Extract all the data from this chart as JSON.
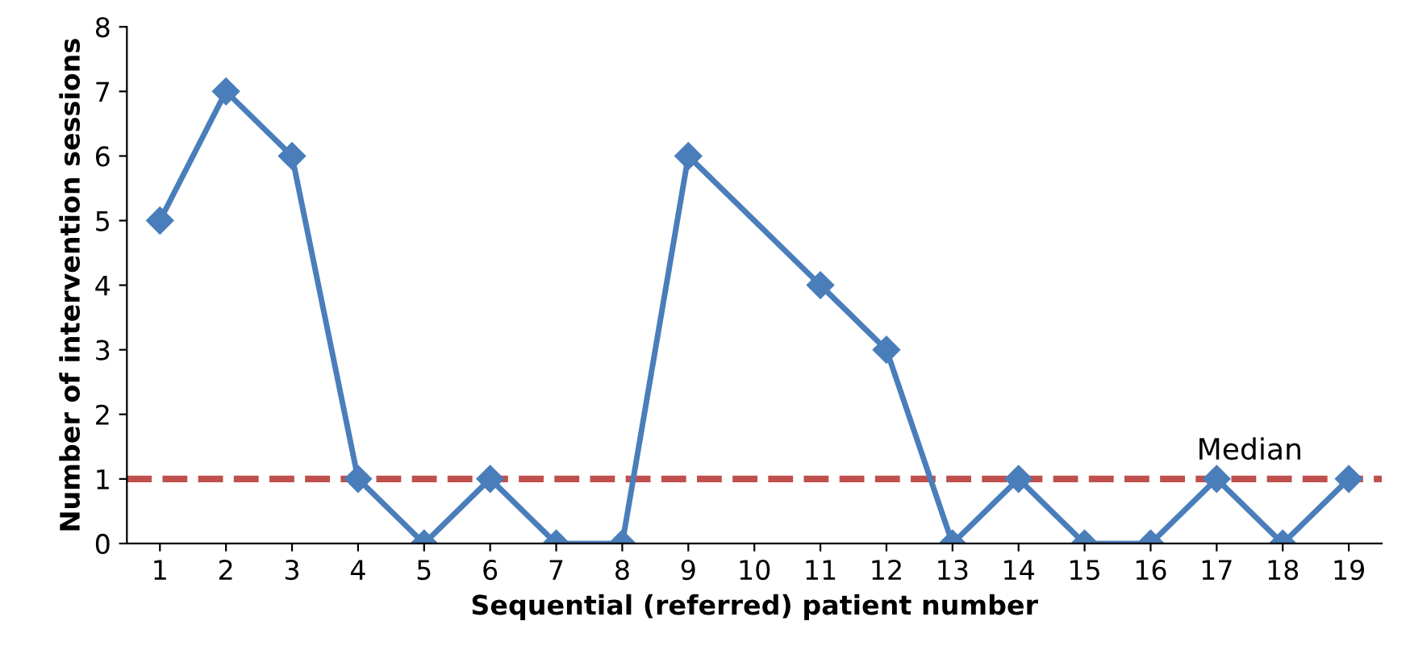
{
  "chart_data": {
    "type": "line",
    "xlabel": "Sequential (referred) patient number",
    "ylabel": "Number of intervention sessions",
    "categories": [
      "1",
      "2",
      "3",
      "4",
      "5",
      "6",
      "7",
      "8",
      "9",
      "10",
      "11",
      "12",
      "13",
      "14",
      "15",
      "16",
      "17",
      "18",
      "19"
    ],
    "series": [
      {
        "color": "#4a7ebb",
        "values": [
          5,
          7,
          6,
          1,
          0,
          1,
          0,
          0,
          6,
          null,
          4,
          3,
          0,
          1,
          0,
          0,
          1,
          0,
          1
        ]
      }
    ],
    "ylim": [
      0,
      8
    ],
    "yticks": [
      0,
      1,
      2,
      3,
      4,
      5,
      6,
      7,
      8
    ],
    "marker": "diamond",
    "line_style": "solid",
    "grid": false,
    "legend": false,
    "ref_lines": [
      {
        "axis": "y",
        "value": 1,
        "label": "Median",
        "color": "#c0504d",
        "line_style": "dashed"
      }
    ]
  }
}
